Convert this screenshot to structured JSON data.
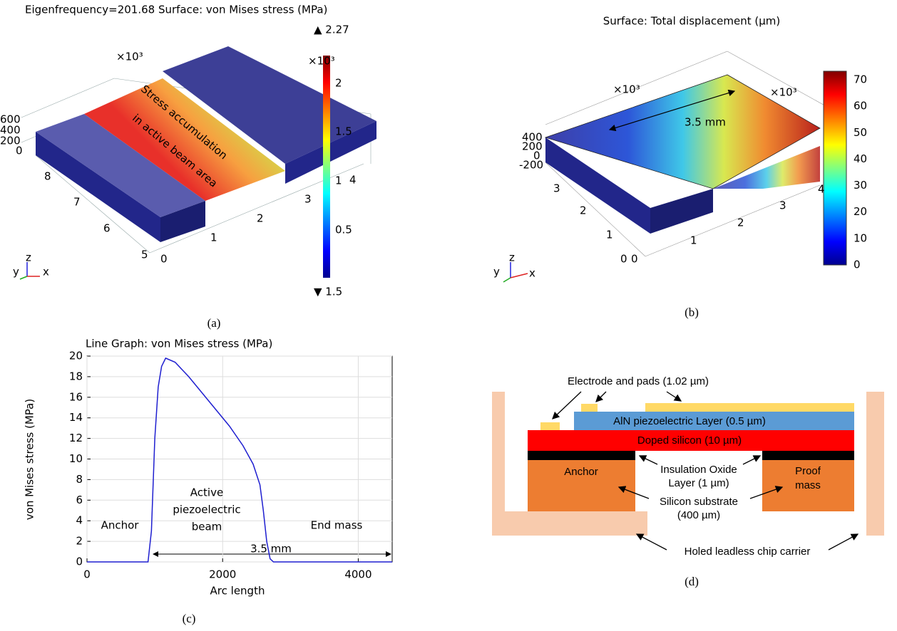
{
  "panel_a": {
    "title": "Eigenfrequency=201.68   Surface: von Mises stress (MPa)",
    "max_label": "▲ 2.27",
    "min_label": "▼ 1.5",
    "colorbar_ticks": [
      "2",
      "1.5",
      "1",
      "0.5"
    ],
    "colorbar_scale": "×10³",
    "axis_scale": "×10³",
    "z_ticks": [
      "600",
      "400",
      "200",
      "0"
    ],
    "y_ticks": [
      "8",
      "7",
      "6",
      "5"
    ],
    "x_ticks": [
      "0",
      "1",
      "2",
      "3",
      "4"
    ],
    "annotation": [
      "Stress accumulation",
      "in active beam area"
    ],
    "triad": [
      "y",
      "z",
      "x"
    ]
  },
  "panel_b": {
    "title": "Surface: Total displacement (µm)",
    "colorbar_ticks": [
      "70",
      "60",
      "50",
      "40",
      "30",
      "20",
      "10",
      "0"
    ],
    "axis_scales": [
      "×10³",
      "×10³"
    ],
    "z_ticks": [
      "400",
      "200",
      "0",
      "-200"
    ],
    "y_ticks": [
      "3",
      "2",
      "1",
      "0"
    ],
    "x_ticks": [
      "0",
      "1",
      "2",
      "3",
      "4"
    ],
    "dimension": "3.5 mm",
    "triad": [
      "y",
      "z",
      "x"
    ]
  },
  "chart_data": {
    "type": "line",
    "title": "Line Graph: von Mises stress (MPa)",
    "x_label": "Arc length",
    "y_label": "von Mises stress (MPa)",
    "x": [
      0,
      900,
      950,
      1000,
      1050,
      1100,
      1160,
      1300,
      1500,
      1700,
      1900,
      2100,
      2300,
      2450,
      2550,
      2600,
      2650,
      2700,
      2750,
      4500
    ],
    "values": [
      0,
      0,
      3,
      12,
      17,
      19,
      19.8,
      19.4,
      18,
      16.4,
      14.8,
      13.2,
      11.3,
      9.5,
      7.5,
      5,
      2,
      0.3,
      0,
      0
    ],
    "color": "#1f1fd0",
    "xlim": [
      0,
      4500
    ],
    "ylim": [
      0,
      20
    ],
    "xticks": [
      0,
      2000,
      4000
    ],
    "yticks": [
      0,
      2,
      4,
      6,
      8,
      10,
      12,
      14,
      16,
      18,
      20
    ],
    "grid": true,
    "annotations": [
      "Anchor",
      "Active",
      "piezoelectric",
      "beam",
      "End mass",
      "3.5 mm"
    ]
  },
  "panel_d": {
    "electrode": "Electrode and pads (1.02 µm)",
    "aln": "AlN piezoelectric Layer (0.5 µm)",
    "doped": "Doped silicon (10 µm)",
    "anchor": "Anchor",
    "oxide": [
      "Insulation Oxide",
      "Layer (1 µm)"
    ],
    "proof_mass": [
      "Proof",
      "mass"
    ],
    "substrate": [
      "Silicon substrate",
      "(400 µm)"
    ],
    "carrier": "Holed leadless chip carrier"
  },
  "captions": [
    "(a)",
    "(b)",
    "(c)",
    "(d)"
  ]
}
